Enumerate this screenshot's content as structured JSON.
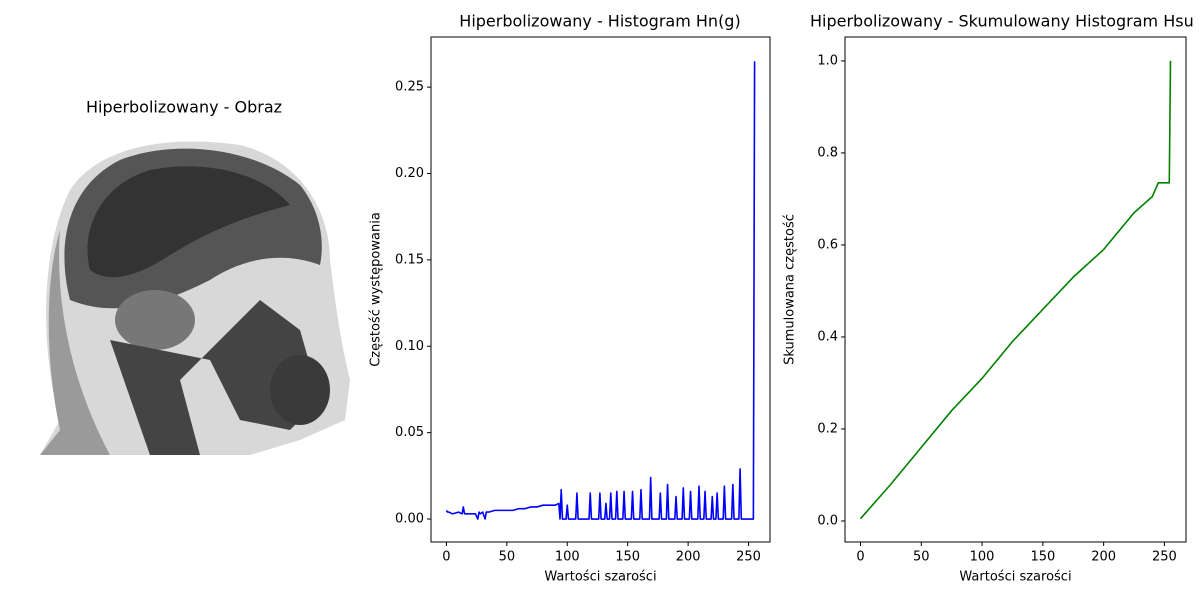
{
  "image_title": "Hiperbolizowany - Obraz",
  "chart_data": [
    {
      "type": "line",
      "title": "Hiperbolizowany - Histogram Hn(g)",
      "xlabel": "Wartości szarości",
      "ylabel": "Częstość występowania",
      "x": [
        0,
        1,
        2,
        5,
        10,
        13,
        14,
        15,
        20,
        24,
        26,
        27,
        28,
        30,
        32,
        33,
        35,
        40,
        45,
        50,
        55,
        60,
        65,
        70,
        75,
        80,
        85,
        90,
        93,
        94,
        95,
        96,
        99,
        100,
        101,
        107,
        108,
        109,
        118,
        119,
        120,
        126,
        127,
        128,
        131,
        132,
        133,
        135,
        136,
        137,
        140,
        141,
        142,
        146,
        147,
        148,
        153,
        154,
        155,
        160,
        161,
        162,
        168,
        169,
        170,
        176,
        177,
        178,
        182,
        183,
        184,
        189,
        190,
        191,
        195,
        196,
        197,
        201,
        202,
        203,
        208,
        209,
        210,
        213,
        214,
        215,
        219,
        220,
        221,
        223,
        224,
        225,
        229,
        230,
        231,
        236,
        237,
        238,
        242,
        243,
        244,
        254,
        255
      ],
      "series": [
        {
          "name": "Hn",
          "color": "#0000ff",
          "values": [
            0.005,
            0.004,
            0.004,
            0.003,
            0.004,
            0.003,
            0.007,
            0.003,
            0.003,
            0.003,
            0.0,
            0.004,
            0.003,
            0.004,
            0.0,
            0.004,
            0.004,
            0.005,
            0.005,
            0.005,
            0.005,
            0.006,
            0.006,
            0.007,
            0.007,
            0.008,
            0.008,
            0.008,
            0.009,
            0.0,
            0.017,
            0.0,
            0,
            0.008,
            0,
            0,
            0.015,
            0,
            0,
            0.015,
            0,
            0,
            0.015,
            0,
            0,
            0.009,
            0,
            0,
            0.015,
            0,
            0,
            0.016,
            0,
            0,
            0.016,
            0,
            0,
            0.016,
            0,
            0,
            0.017,
            0,
            0,
            0.024,
            0,
            0,
            0.015,
            0,
            0,
            0.02,
            0,
            0,
            0.013,
            0,
            0,
            0.018,
            0,
            0,
            0.016,
            0,
            0,
            0.019,
            0,
            0,
            0.016,
            0,
            0,
            0.013,
            0,
            0,
            0.015,
            0,
            0,
            0.019,
            0,
            0,
            0.02,
            0,
            0,
            0.029,
            0,
            0,
            0.265
          ]
        }
      ],
      "xlim": [
        -12.75,
        267.75
      ],
      "xticks": [
        0,
        50,
        100,
        150,
        200,
        250
      ],
      "ylim": [
        -0.0133,
        0.279
      ],
      "yticks": [
        {
          "value": 0,
          "label": "0.00"
        },
        0.05,
        {
          "value": 0.1,
          "label": "0.10"
        },
        0.15,
        {
          "value": 0.2,
          "label": "0.20"
        },
        0.25
      ]
    },
    {
      "type": "line",
      "title": "Hiperbolizowany - Skumulowany Histogram Hsu",
      "xlabel": "Wartości szarości",
      "ylabel": "Skumulowana częstość",
      "x": [
        0,
        25,
        50,
        75,
        100,
        125,
        150,
        175,
        200,
        225,
        240,
        245,
        254,
        255
      ],
      "series": [
        {
          "name": "Hsum",
          "color": "#008000",
          "values": [
            0.005,
            0.08,
            0.16,
            0.24,
            0.31,
            0.39,
            0.46,
            0.53,
            0.59,
            0.67,
            0.705,
            0.735,
            0.735,
            1.0
          ]
        }
      ],
      "xlim": [
        -12.75,
        267.75
      ],
      "xticks": [
        0,
        50,
        100,
        150,
        200,
        250
      ],
      "ylim": [
        -0.0457,
        1.052
      ],
      "yticks": [
        {
          "value": 0,
          "label": "0.0"
        },
        0.2,
        0.4,
        0.6,
        0.8,
        {
          "value": 1,
          "label": "1.0"
        }
      ]
    }
  ]
}
